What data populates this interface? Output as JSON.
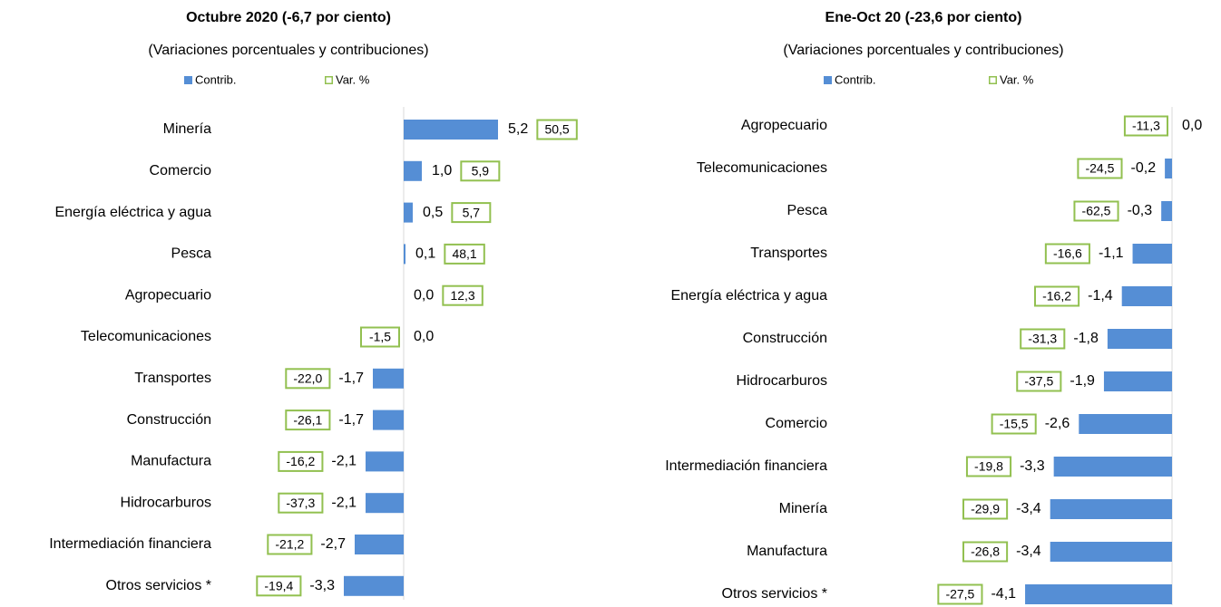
{
  "chart_data": [
    {
      "type": "bar",
      "orientation": "horizontal",
      "title": "Octubre 2020 (-6,7 por ciento)",
      "subtitle": "(Variaciones porcentuales y contribuciones)",
      "categories": [
        "Minería",
        "Comercio",
        "Energía eléctrica y agua",
        "Pesca",
        "Agropecuario",
        "Telecomunicaciones",
        "Transportes",
        "Construcción",
        "Manufactura",
        "Hidrocarburos",
        "Intermediación financiera",
        "Otros servicios *"
      ],
      "series": [
        {
          "name": "Contrib.",
          "color": "#558ed5",
          "values": [
            5.2,
            1.0,
            0.5,
            0.1,
            0.0,
            0.0,
            -1.7,
            -1.7,
            -2.1,
            -2.1,
            -2.7,
            -3.3
          ],
          "value_labels": [
            "5,2",
            "1,0",
            "0,5",
            "0,1",
            "0,0",
            "0,0",
            "-1,7",
            "-1,7",
            "-2,1",
            "-2,1",
            "-2,7",
            "-3,3"
          ]
        },
        {
          "name": "Var. %",
          "color": "#92c050",
          "values": [
            50.5,
            5.9,
            5.7,
            48.1,
            12.3,
            -1.5,
            -22.0,
            -26.1,
            -16.2,
            -37.3,
            -21.2,
            -19.4
          ],
          "value_labels": [
            "50,5",
            "5,9",
            "5,7",
            "48,1",
            "12,3",
            "-1,5",
            "-22,0",
            "-26,1",
            "-16,2",
            "-37,3",
            "-21,2",
            "-19,4"
          ]
        }
      ]
    },
    {
      "type": "bar",
      "orientation": "horizontal",
      "title": "Ene-Oct 20 (-23,6 por ciento)",
      "subtitle": "(Variaciones porcentuales y contribuciones)",
      "categories": [
        "Agropecuario",
        "Telecomunicaciones",
        "Pesca",
        "Transportes",
        "Energía eléctrica y agua",
        "Construcción",
        "Hidrocarburos",
        "Comercio",
        "Intermediación financiera",
        "Minería",
        "Manufactura",
        "Otros servicios *"
      ],
      "series": [
        {
          "name": "Contrib.",
          "color": "#558ed5",
          "values": [
            0.0,
            -0.2,
            -0.3,
            -1.1,
            -1.4,
            -1.8,
            -1.9,
            -2.6,
            -3.3,
            -3.4,
            -3.4,
            -4.1
          ],
          "value_labels": [
            "0,0",
            "-0,2",
            "-0,3",
            "-1,1",
            "-1,4",
            "-1,8",
            "-1,9",
            "-2,6",
            "-3,3",
            "-3,4",
            "-3,4",
            "-4,1"
          ]
        },
        {
          "name": "Var. %",
          "color": "#92c050",
          "values": [
            -11.3,
            -24.5,
            -62.5,
            -16.6,
            -16.2,
            -31.3,
            -37.5,
            -15.5,
            -19.8,
            -29.9,
            -26.8,
            -27.5
          ],
          "value_labels": [
            "-11,3",
            "-24,5",
            "-62,5",
            "-16,6",
            "-16,2",
            "-31,3",
            "-37,5",
            "-15,5",
            "-19,8",
            "-29,9",
            "-26,8",
            "-27,5"
          ]
        }
      ]
    }
  ]
}
